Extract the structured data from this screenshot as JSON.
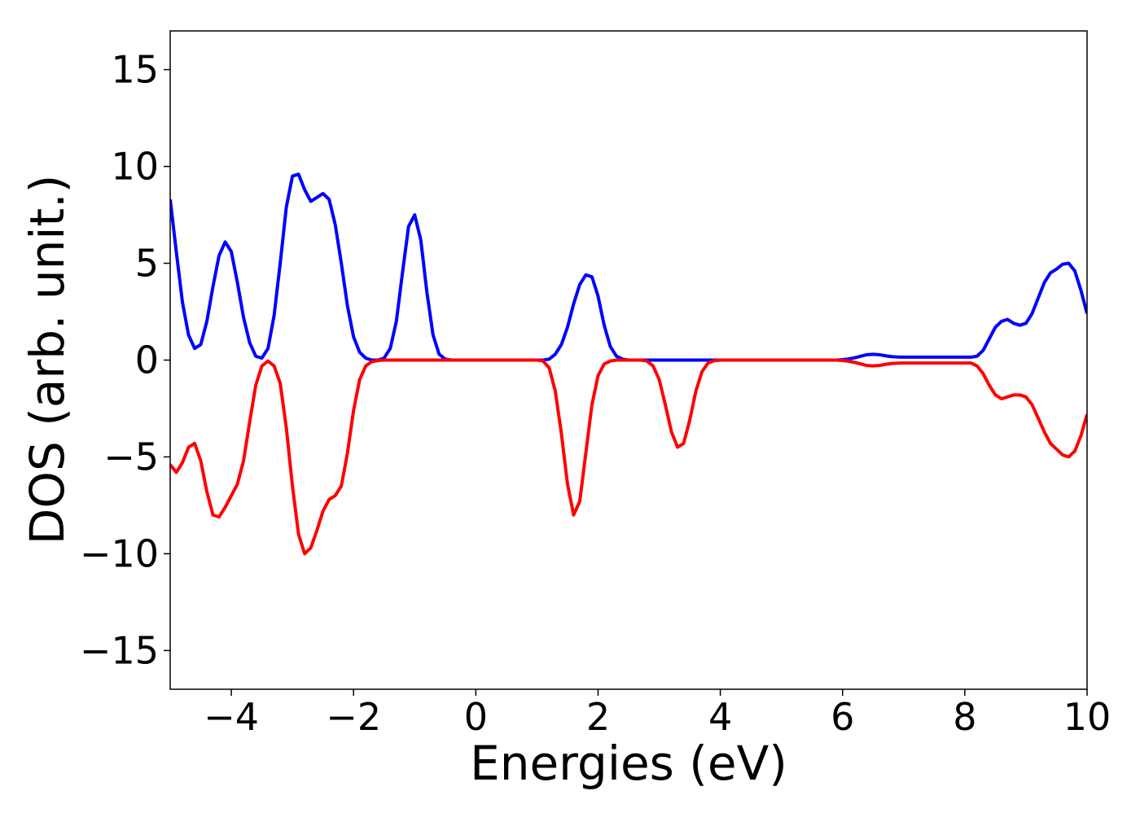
{
  "chart_data": {
    "type": "line",
    "x_label": "Energies (eV)",
    "y_label": "DOS (arb. unit.)",
    "xlim": [
      -5,
      10
    ],
    "ylim": [
      -17,
      17
    ],
    "xticks": [
      {
        "value": -4,
        "label": "−4"
      },
      {
        "value": -2,
        "label": "−2"
      },
      0,
      2,
      4,
      6,
      8,
      10
    ],
    "yticks": [
      {
        "value": -15,
        "label": "−15"
      },
      {
        "value": -10,
        "label": "−10"
      },
      {
        "value": -5,
        "label": "−5"
      },
      0,
      5,
      10,
      15
    ],
    "x": [
      -5.0,
      -4.9,
      -4.8,
      -4.7,
      -4.6,
      -4.5,
      -4.4,
      -4.3,
      -4.2,
      -4.1,
      -4.0,
      -3.9,
      -3.8,
      -3.7,
      -3.6,
      -3.5,
      -3.4,
      -3.3,
      -3.2,
      -3.1,
      -3.0,
      -2.9,
      -2.8,
      -2.7,
      -2.6,
      -2.5,
      -2.4,
      -2.3,
      -2.2,
      -2.1,
      -2.0,
      -1.9,
      -1.8,
      -1.7,
      -1.6,
      -1.5,
      -1.4,
      -1.3,
      -1.2,
      -1.1,
      -1.0,
      -0.9,
      -0.8,
      -0.7,
      -0.6,
      -0.5,
      -0.4,
      -0.3,
      -0.2,
      -0.1,
      0.0,
      0.1,
      0.2,
      0.3,
      0.4,
      0.5,
      0.6,
      0.7,
      0.8,
      0.9,
      1.0,
      1.1,
      1.2,
      1.3,
      1.4,
      1.5,
      1.6,
      1.7,
      1.8,
      1.9,
      2.0,
      2.1,
      2.2,
      2.3,
      2.4,
      2.5,
      2.6,
      2.7,
      2.8,
      2.9,
      3.0,
      3.1,
      3.2,
      3.3,
      3.4,
      3.5,
      3.6,
      3.7,
      3.8,
      3.9,
      4.0,
      4.1,
      4.2,
      4.3,
      4.4,
      4.5,
      4.6,
      4.7,
      4.8,
      4.9,
      5.0,
      5.1,
      5.2,
      5.3,
      5.4,
      5.5,
      5.6,
      5.7,
      5.8,
      5.9,
      6.0,
      6.1,
      6.2,
      6.3,
      6.4,
      6.5,
      6.6,
      6.7,
      6.8,
      6.9,
      7.0,
      7.1,
      7.2,
      7.3,
      7.4,
      7.5,
      7.6,
      7.7,
      7.8,
      7.9,
      8.0,
      8.1,
      8.2,
      8.3,
      8.4,
      8.5,
      8.6,
      8.7,
      8.8,
      8.9,
      9.0,
      9.1,
      9.2,
      9.3,
      9.4,
      9.5,
      9.6,
      9.7,
      9.8,
      9.9,
      10.0
    ],
    "series": [
      {
        "color": "#0000ff",
        "values": [
          8.3,
          5.6,
          3.0,
          1.3,
          0.6,
          0.8,
          2.0,
          3.8,
          5.4,
          6.1,
          5.6,
          4.0,
          2.2,
          0.9,
          0.2,
          0.1,
          0.6,
          2.3,
          5.0,
          7.9,
          9.5,
          9.6,
          8.8,
          8.2,
          8.4,
          8.6,
          8.3,
          7.0,
          5.0,
          2.8,
          1.2,
          0.4,
          0.1,
          0,
          0,
          0.1,
          0.6,
          2.0,
          4.5,
          6.9,
          7.5,
          6.2,
          3.5,
          1.3,
          0.3,
          0.05,
          0,
          0,
          0,
          0,
          0,
          0,
          0,
          0,
          0,
          0,
          0,
          0,
          0,
          0,
          0,
          0,
          0.05,
          0.3,
          0.8,
          1.7,
          2.9,
          3.9,
          4.4,
          4.3,
          3.3,
          1.8,
          0.7,
          0.2,
          0.05,
          0,
          0,
          0,
          0,
          0,
          0,
          0,
          0,
          0,
          0,
          0,
          0,
          0,
          0,
          0,
          0,
          0,
          0,
          0,
          0,
          0,
          0,
          0,
          0,
          0,
          0,
          0,
          0,
          0,
          0,
          0,
          0,
          0,
          0,
          0,
          0.02,
          0.06,
          0.12,
          0.2,
          0.28,
          0.3,
          0.28,
          0.22,
          0.18,
          0.16,
          0.15,
          0.15,
          0.15,
          0.15,
          0.15,
          0.15,
          0.15,
          0.15,
          0.15,
          0.15,
          0.15,
          0.15,
          0.2,
          0.5,
          1.1,
          1.7,
          2.0,
          2.1,
          1.9,
          1.8,
          1.9,
          2.4,
          3.2,
          4.0,
          4.5,
          4.7,
          4.95,
          5.0,
          4.6,
          3.6,
          2.4
        ]
      },
      {
        "color": "#ff0000",
        "values": [
          -5.4,
          -5.8,
          -5.3,
          -4.5,
          -4.3,
          -5.2,
          -6.8,
          -8.0,
          -8.1,
          -7.6,
          -7.0,
          -6.4,
          -5.2,
          -3.2,
          -1.3,
          -0.3,
          -0.05,
          -0.3,
          -1.2,
          -3.5,
          -6.5,
          -9.0,
          -10.0,
          -9.7,
          -8.8,
          -7.8,
          -7.2,
          -7.0,
          -6.5,
          -4.8,
          -2.6,
          -1.0,
          -0.3,
          -0.08,
          -0.02,
          0,
          0,
          0,
          0,
          0,
          0,
          0,
          0,
          0,
          0,
          0,
          0,
          0,
          0,
          0,
          0,
          0,
          0,
          0,
          0,
          0,
          0,
          0,
          0,
          0,
          0,
          -0.05,
          -0.4,
          -1.6,
          -3.8,
          -6.4,
          -8.0,
          -7.3,
          -4.8,
          -2.3,
          -0.8,
          -0.2,
          -0.05,
          0,
          0,
          0,
          0,
          0,
          -0.05,
          -0.3,
          -1.0,
          -2.3,
          -3.7,
          -4.5,
          -4.3,
          -3.1,
          -1.6,
          -0.6,
          -0.15,
          -0.03,
          0,
          0,
          0,
          0,
          0,
          0,
          0,
          0,
          0,
          0,
          0,
          0,
          0,
          0,
          0,
          0,
          0,
          0,
          0,
          0,
          -0.02,
          -0.06,
          -0.12,
          -0.2,
          -0.28,
          -0.3,
          -0.28,
          -0.22,
          -0.18,
          -0.16,
          -0.15,
          -0.15,
          -0.15,
          -0.15,
          -0.15,
          -0.15,
          -0.15,
          -0.15,
          -0.15,
          -0.15,
          -0.15,
          -0.15,
          -0.3,
          -0.7,
          -1.3,
          -1.8,
          -2.0,
          -1.9,
          -1.8,
          -1.8,
          -1.9,
          -2.3,
          -3.0,
          -3.7,
          -4.3,
          -4.6,
          -4.9,
          -5.0,
          -4.7,
          -3.9,
          -2.8
        ]
      }
    ]
  }
}
